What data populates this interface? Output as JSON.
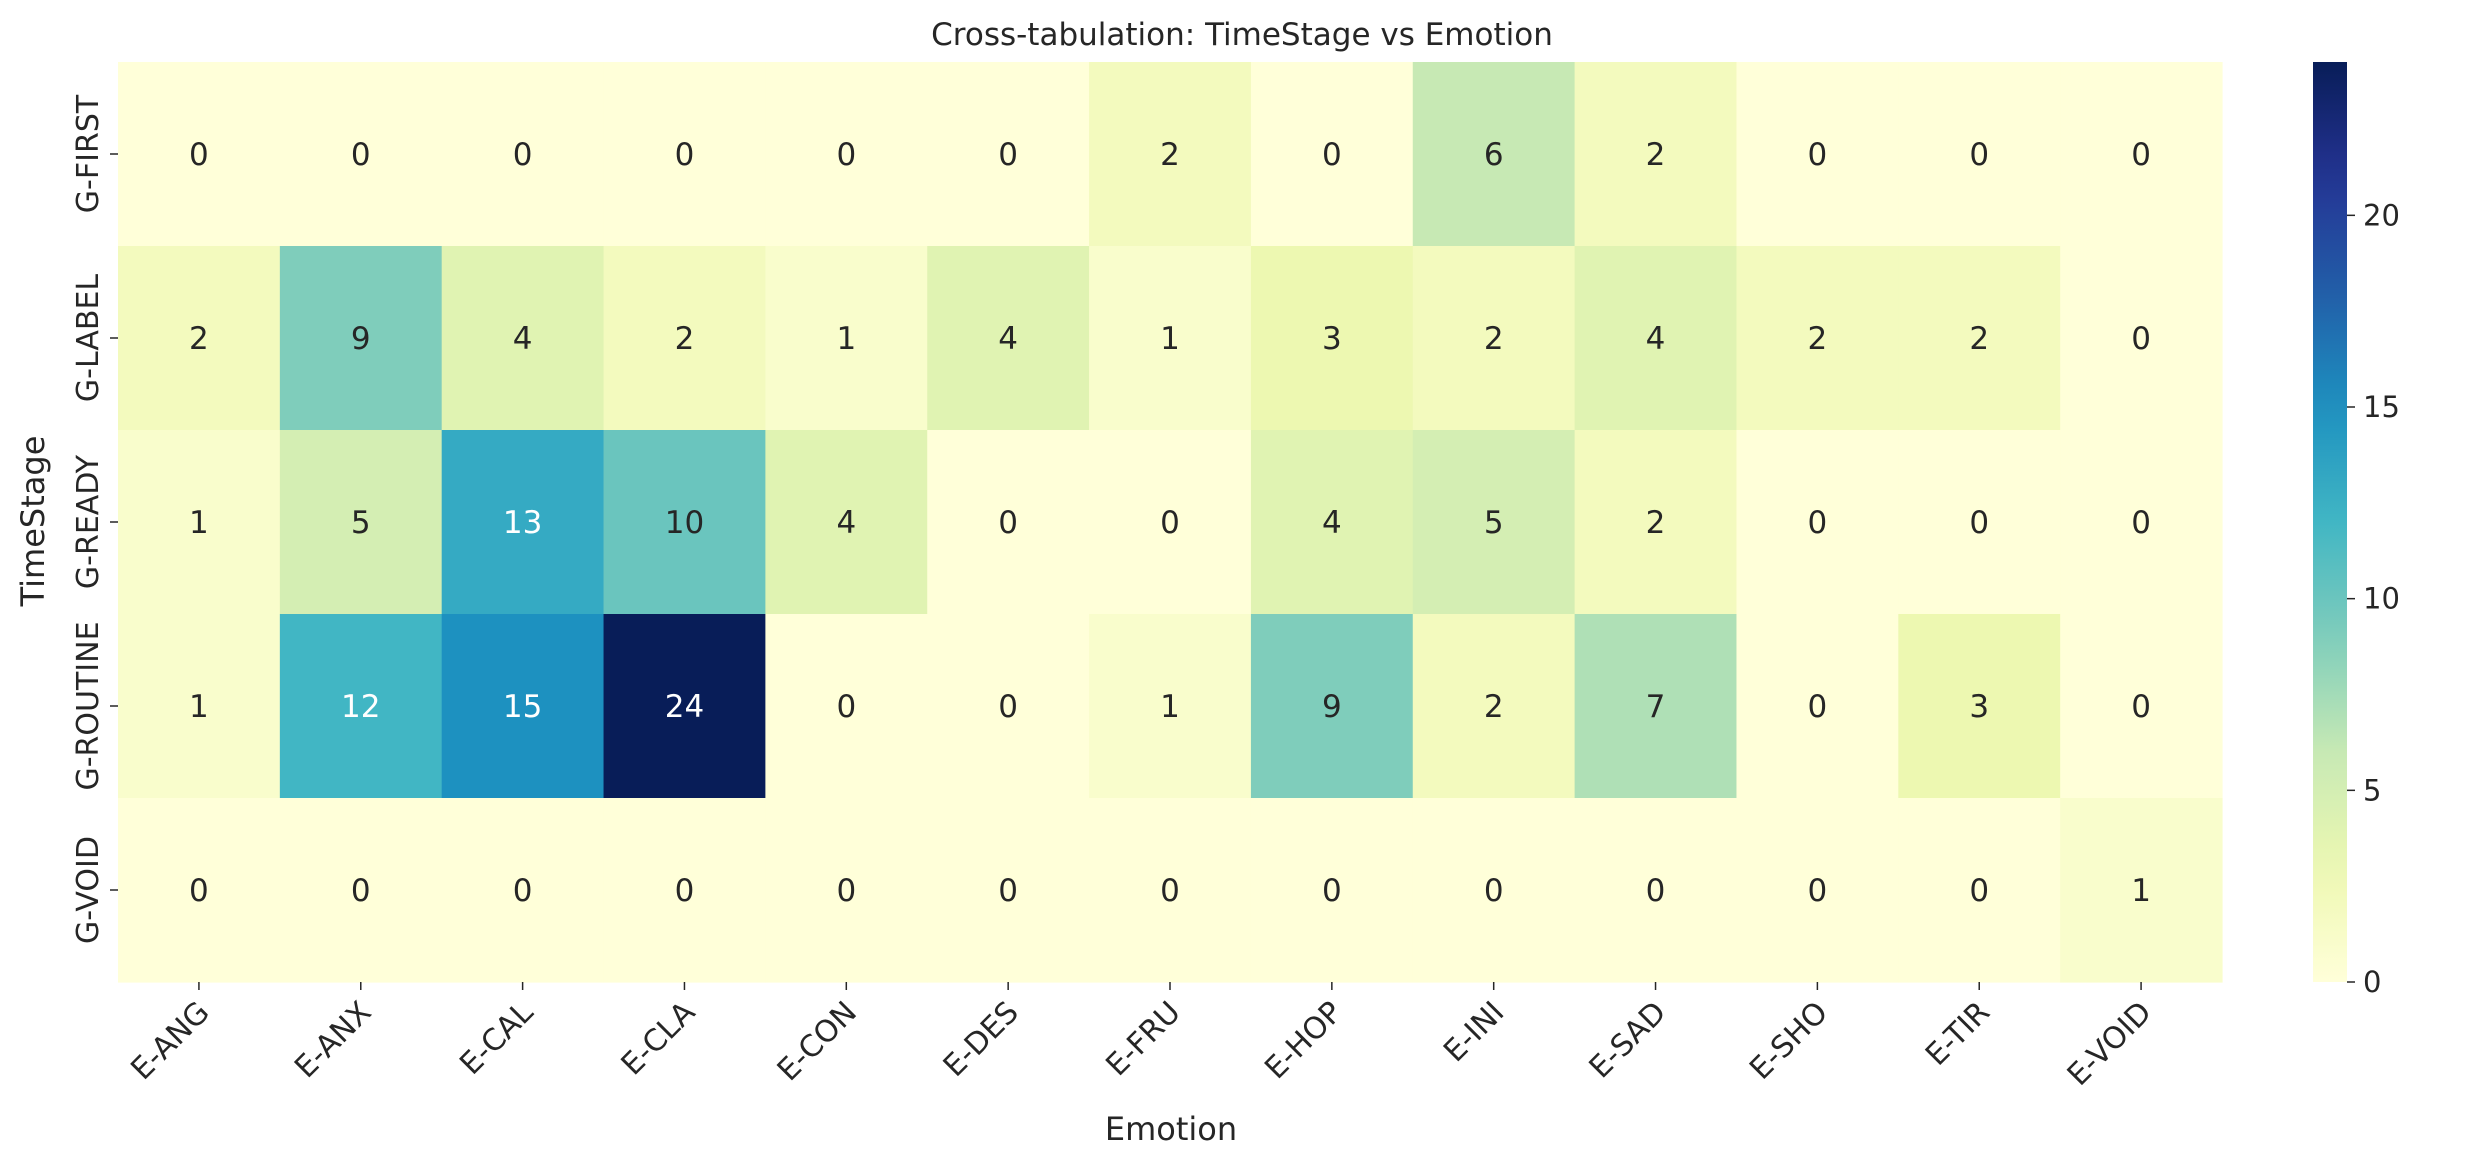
{
  "chart_data": {
    "type": "heatmap",
    "title": "Cross-tabulation: TimeStage vs Emotion",
    "xlabel": "Emotion",
    "ylabel": "TimeStage",
    "x_categories": [
      "E-ANG",
      "E-ANX",
      "E-CAL",
      "E-CLA",
      "E-CON",
      "E-DES",
      "E-FRU",
      "E-HOP",
      "E-INI",
      "E-SAD",
      "E-SHO",
      "E-TIR",
      "E-VOID"
    ],
    "y_categories": [
      "G-FIRST",
      "G-LABEL",
      "G-READY",
      "G-ROUTINE",
      "G-VOID"
    ],
    "values": [
      [
        0,
        0,
        0,
        0,
        0,
        0,
        2,
        0,
        6,
        2,
        0,
        0,
        0
      ],
      [
        2,
        9,
        4,
        2,
        1,
        4,
        1,
        3,
        2,
        4,
        2,
        2,
        0
      ],
      [
        1,
        5,
        13,
        10,
        4,
        0,
        0,
        4,
        5,
        2,
        0,
        0,
        0
      ],
      [
        1,
        12,
        15,
        24,
        0,
        0,
        1,
        9,
        2,
        7,
        0,
        3,
        0
      ],
      [
        0,
        0,
        0,
        0,
        0,
        0,
        0,
        0,
        0,
        0,
        0,
        0,
        1
      ]
    ],
    "colormap": "YlGnBu",
    "vmin": 0,
    "vmax": 24,
    "colorbar_ticks": [
      0,
      5,
      10,
      15,
      20
    ],
    "annotated": true
  }
}
